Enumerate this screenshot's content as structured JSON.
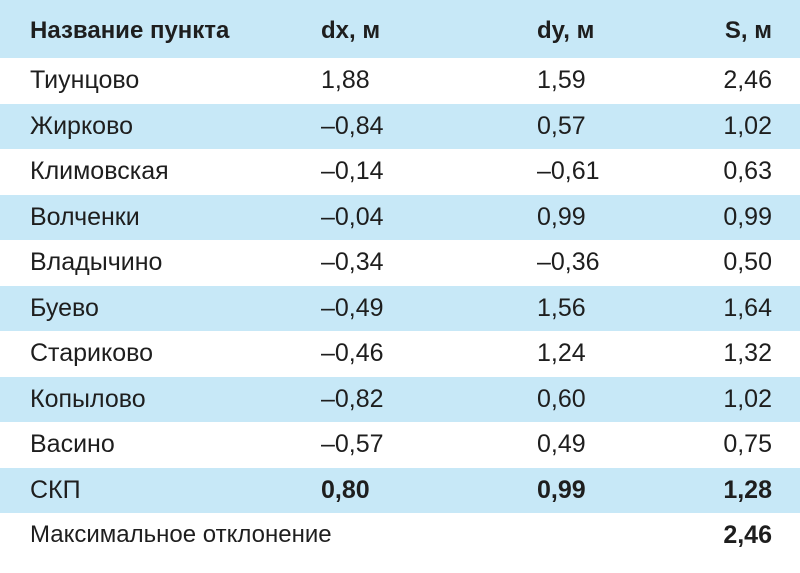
{
  "header": {
    "name": "Название пункта",
    "dx": "dx, м",
    "dy": "dy, м",
    "s": "S, м"
  },
  "rows": [
    {
      "name": "Тиунцово",
      "dx": "1,88",
      "dy": "1,59",
      "s": "2,46"
    },
    {
      "name": "Жирково",
      "dx": "–0,84",
      "dy": "0,57",
      "s": "1,02"
    },
    {
      "name": "Климовская",
      "dx": "–0,14",
      "dy": "–0,61",
      "s": "0,63"
    },
    {
      "name": "Волченки",
      "dx": "–0,04",
      "dy": "0,99",
      "s": "0,99"
    },
    {
      "name": "Владычино",
      "dx": "–0,34",
      "dy": "–0,36",
      "s": "0,50"
    },
    {
      "name": "Буево",
      "dx": "–0,49",
      "dy": "1,56",
      "s": "1,64"
    },
    {
      "name": "Стариково",
      "dx": "–0,46",
      "dy": "1,24",
      "s": "1,32"
    },
    {
      "name": "Копылово",
      "dx": "–0,82",
      "dy": "0,60",
      "s": "1,02"
    },
    {
      "name": "Васино",
      "dx": "–0,57",
      "dy": "0,49",
      "s": "0,75"
    }
  ],
  "summary": {
    "name": "СКП",
    "dx": "0,80",
    "dy": "0,99",
    "s": "1,28"
  },
  "max": {
    "label": "Максимальное отклонение",
    "value": "2,46"
  },
  "colors": {
    "shade": "#c7e8f7",
    "text": "#1e1e1e"
  }
}
